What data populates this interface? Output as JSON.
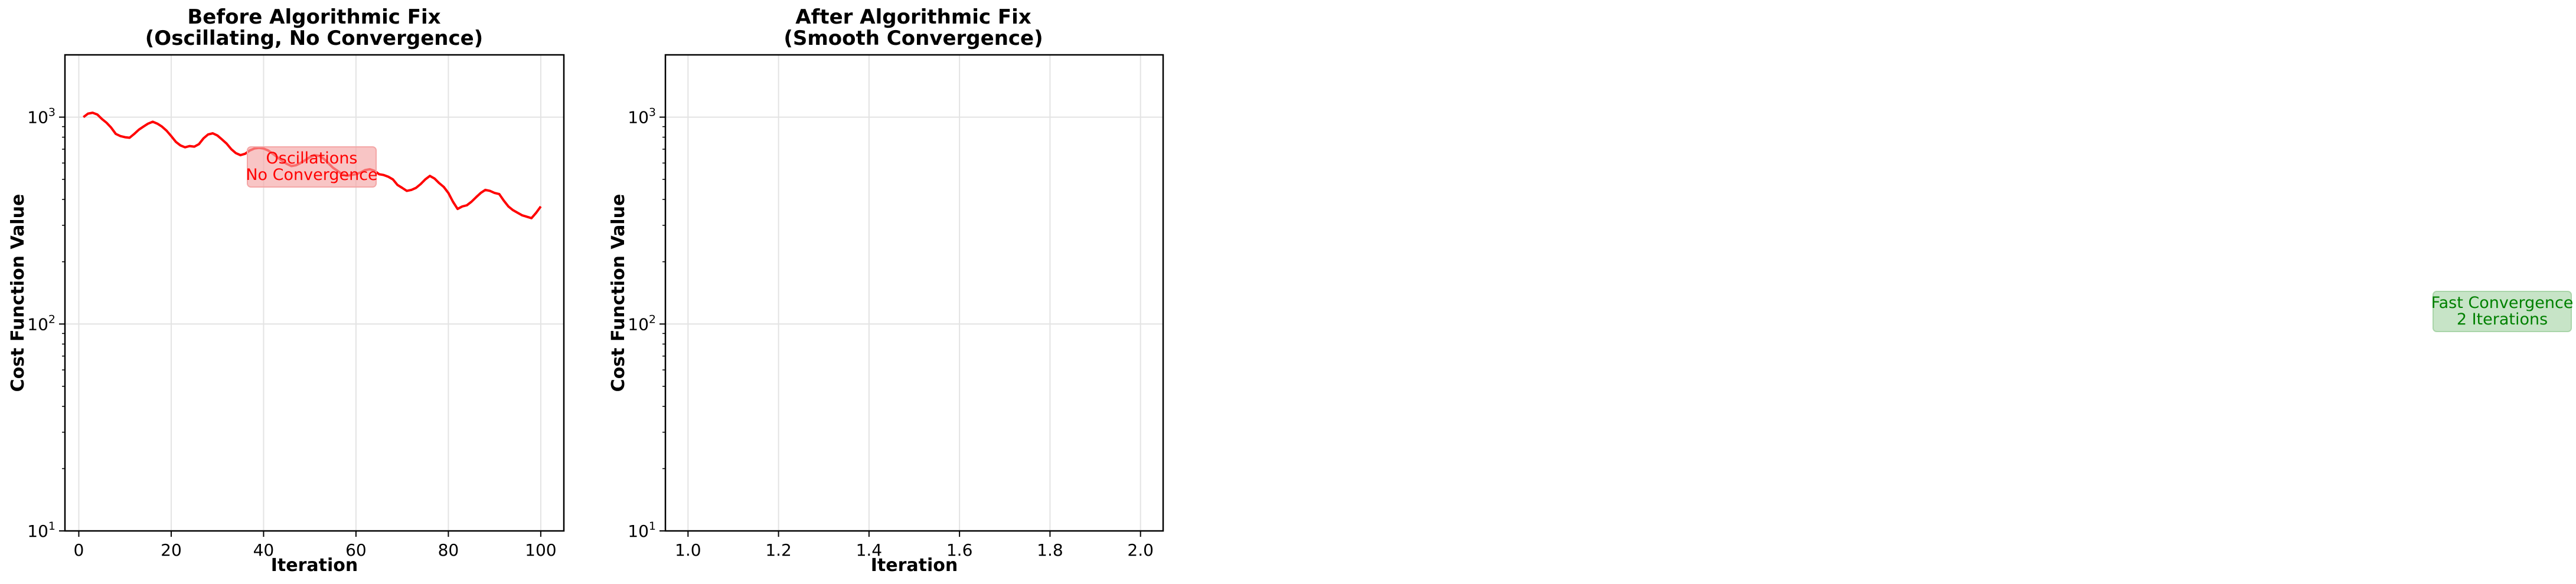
{
  "chart_data": [
    {
      "type": "line",
      "title_lines": [
        "Before Algorithmic Fix",
        "(Oscillating, No Convergence)"
      ],
      "xlabel": "Iteration",
      "ylabel": "Cost Function Value",
      "y_scale": "log",
      "xlim": [
        -3,
        105
      ],
      "ylim": [
        10,
        2000
      ],
      "xticks": [
        0,
        20,
        40,
        60,
        80,
        100
      ],
      "xtick_labels": [
        "0",
        "20",
        "40",
        "60",
        "80",
        "100"
      ],
      "yticks": [
        10,
        100,
        1000
      ],
      "ytick_labels": [
        {
          "base": "10",
          "exp": "1"
        },
        {
          "base": "10",
          "exp": "2"
        },
        {
          "base": "10",
          "exp": "3"
        }
      ],
      "grid": true,
      "series": [
        {
          "color": "#ff0000",
          "x": [
            1,
            2,
            3,
            4,
            5,
            6,
            7,
            8,
            9,
            10,
            11,
            12,
            13,
            14,
            15,
            16,
            17,
            18,
            19,
            20,
            21,
            22,
            23,
            24,
            25,
            26,
            27,
            28,
            29,
            30,
            31,
            32,
            33,
            34,
            35,
            36,
            37,
            38,
            39,
            40,
            41,
            42,
            43,
            44,
            45,
            46,
            47,
            48,
            49,
            50,
            51,
            52,
            53,
            54,
            55,
            56,
            57,
            58,
            59,
            60,
            61,
            62,
            63,
            64,
            65,
            66,
            67,
            68,
            69,
            70,
            71,
            72,
            73,
            74,
            75,
            76,
            77,
            78,
            79,
            80,
            81,
            82,
            83,
            84,
            85,
            86,
            87,
            88,
            89,
            90,
            91,
            92,
            93,
            94,
            95,
            96,
            97,
            98,
            99,
            100
          ],
          "y": [
            1000,
            1040,
            1050,
            1030,
            980,
            940,
            890,
            830,
            810,
            800,
            795,
            830,
            870,
            900,
            930,
            950,
            930,
            900,
            860,
            810,
            760,
            730,
            715,
            725,
            720,
            740,
            790,
            825,
            835,
            815,
            780,
            745,
            700,
            670,
            655,
            665,
            690,
            705,
            710,
            705,
            690,
            665,
            640,
            615,
            595,
            580,
            585,
            600,
            620,
            640,
            655,
            650,
            630,
            600,
            570,
            550,
            530,
            520,
            525,
            530,
            540,
            555,
            560,
            550,
            530,
            525,
            515,
            500,
            470,
            455,
            440,
            445,
            455,
            475,
            500,
            520,
            505,
            480,
            460,
            430,
            390,
            360,
            370,
            375,
            390,
            410,
            430,
            445,
            440,
            430,
            425,
            395,
            370,
            355,
            345,
            335,
            330,
            325,
            345,
            370
          ]
        }
      ],
      "annotation": {
        "lines": [
          "Oscillations",
          "No Convergence"
        ],
        "color": "#ff0000",
        "box_color": "#f4a6a6"
      }
    },
    {
      "type": "line",
      "title_lines": [
        "After Algorithmic Fix",
        "(Smooth Convergence)"
      ],
      "xlabel": "Iteration",
      "ylabel": "Cost Function Value",
      "y_scale": "log",
      "xlim": [
        0.95,
        2.05
      ],
      "ylim": [
        10,
        2000
      ],
      "xticks": [
        1.0,
        1.2,
        1.4,
        1.6,
        1.8,
        2.0
      ],
      "xtick_labels": [
        "1.0",
        "1.2",
        "1.4",
        "1.6",
        "1.8",
        "2.0"
      ],
      "yticks": [
        10,
        100,
        1000
      ],
      "ytick_labels": [
        {
          "base": "10",
          "exp": "1"
        },
        {
          "base": "10",
          "exp": "2"
        },
        {
          "base": "10",
          "exp": "3"
        }
      ],
      "grid": true,
      "series": [],
      "annotation": {
        "lines": [
          "Fast Convergence",
          "2 Iterations"
        ],
        "color": "#008000",
        "box_color": "#a9d5a9"
      }
    }
  ]
}
